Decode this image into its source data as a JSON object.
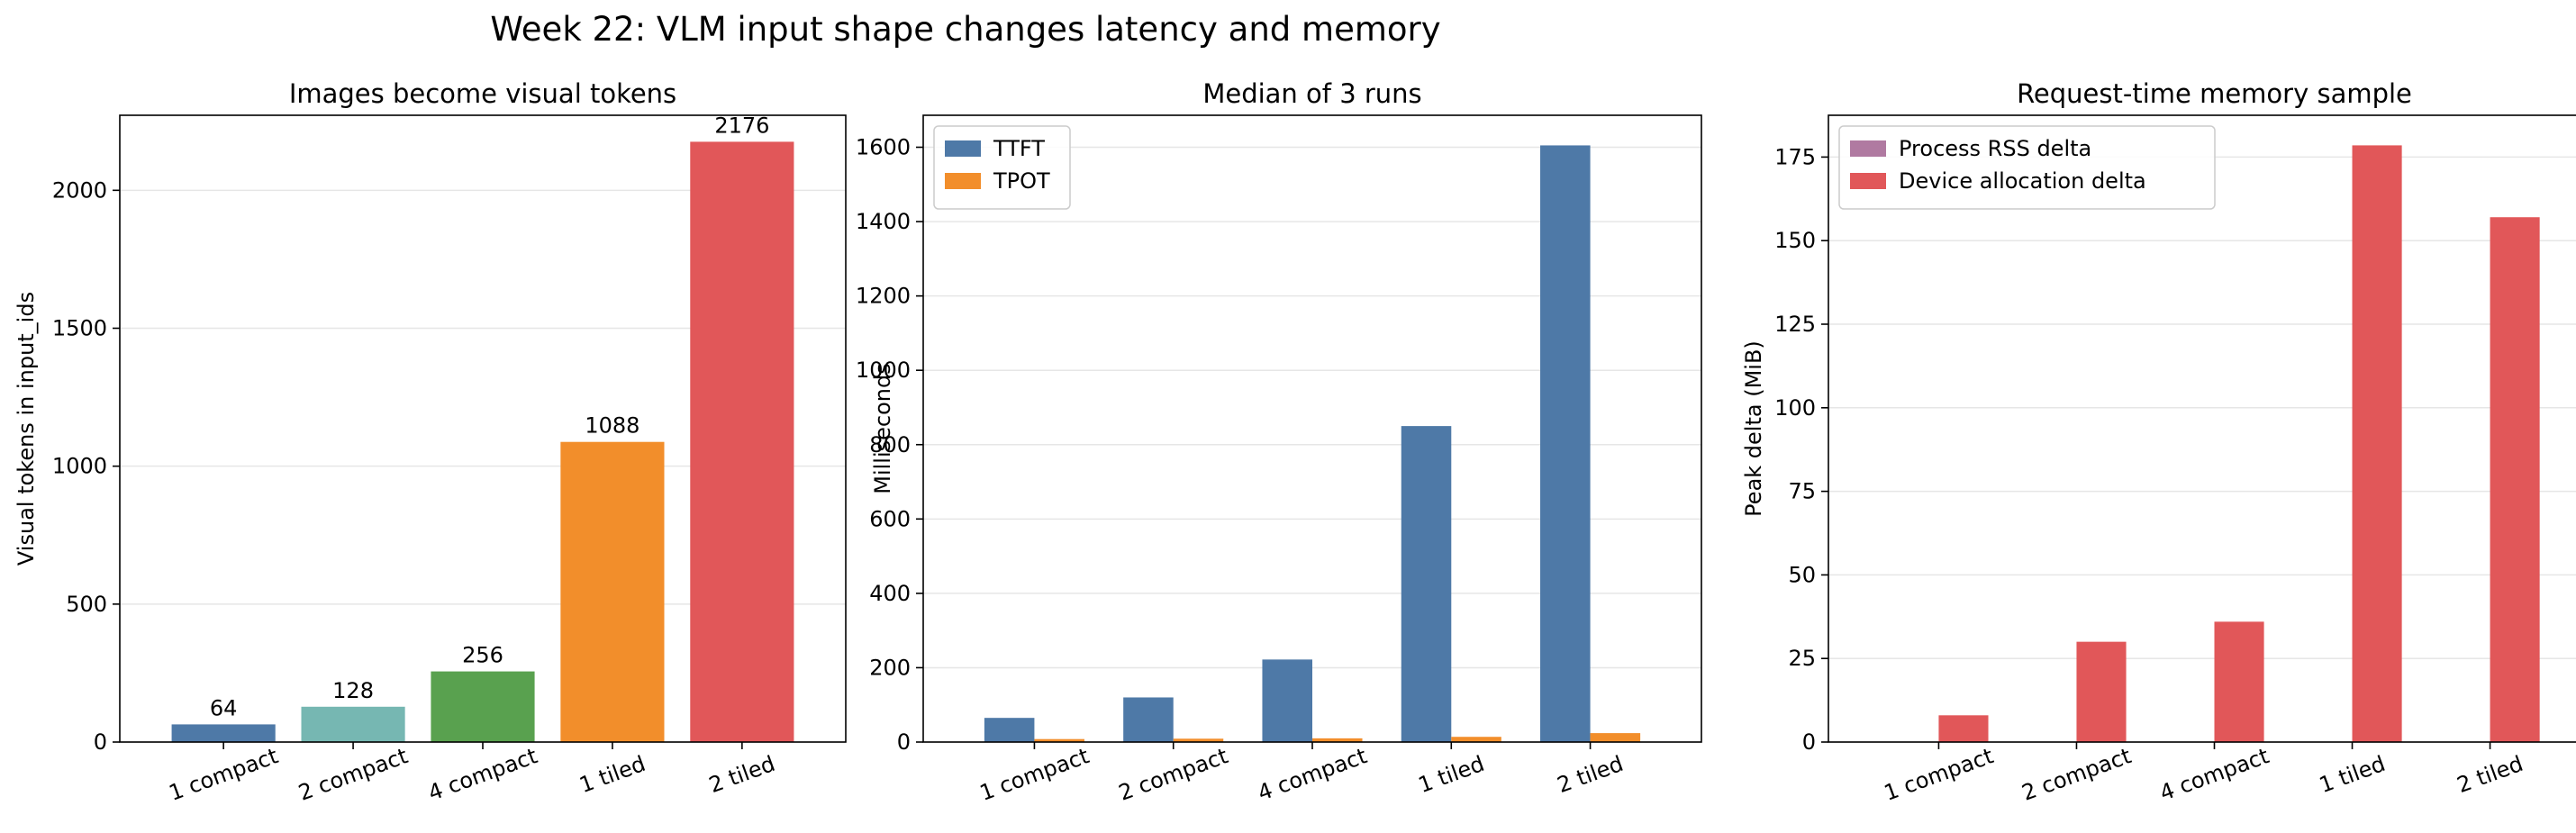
{
  "suptitle": "Week 22: VLM input shape changes latency and memory",
  "colors": {
    "steel_blue": "#4e79a7",
    "teal": "#76b7b2",
    "green": "#59a14f",
    "orange": "#f28e2b",
    "red": "#e15759",
    "mauve": "#b07aa1",
    "grid": "#e6e6e6"
  },
  "chart_data": [
    {
      "type": "bar",
      "title": "Images become visual tokens",
      "ylabel": "Visual tokens in input_ids",
      "categories": [
        "1 compact",
        "2 compact",
        "4 compact",
        "1 tiled",
        "2 tiled"
      ],
      "values": [
        64,
        128,
        256,
        1088,
        2176
      ],
      "data_labels": [
        "64",
        "128",
        "256",
        "1088",
        "2176"
      ],
      "bar_colors": [
        "#4e79a7",
        "#76b7b2",
        "#59a14f",
        "#f28e2b",
        "#e15759"
      ],
      "ylim": [
        0,
        2272
      ],
      "yticks": [
        0,
        500,
        1000,
        1500,
        2000
      ],
      "grid": "y"
    },
    {
      "type": "bar",
      "title": "Median of 3 runs",
      "ylabel": "Milliseconds",
      "categories": [
        "1 compact",
        "2 compact",
        "4 compact",
        "1 tiled",
        "2 tiled"
      ],
      "series": [
        {
          "name": "TTFT",
          "color": "#4e79a7",
          "values": [
            65,
            120,
            222,
            850,
            1605
          ]
        },
        {
          "name": "TPOT",
          "color": "#f28e2b",
          "values": [
            8,
            9,
            10,
            14,
            24
          ]
        }
      ],
      "ylim": [
        0,
        1686
      ],
      "yticks": [
        0,
        200,
        400,
        600,
        800,
        1000,
        1200,
        1400,
        1600
      ],
      "legend": "top-left",
      "grid": "y"
    },
    {
      "type": "bar",
      "title": "Request-time memory sample",
      "ylabel": "Peak delta (MiB)",
      "categories": [
        "1 compact",
        "2 compact",
        "4 compact",
        "1 tiled",
        "2 tiled"
      ],
      "series": [
        {
          "name": "Process RSS delta",
          "color": "#b07aa1",
          "values": [
            0,
            0,
            0,
            0,
            0
          ]
        },
        {
          "name": "Device allocation delta",
          "color": "#e15759",
          "values": [
            8,
            30,
            36,
            178.5,
            157
          ]
        }
      ],
      "ylim": [
        0,
        187.5
      ],
      "yticks": [
        0,
        25,
        50,
        75,
        100,
        125,
        150,
        175
      ],
      "legend": "top-left",
      "grid": "y"
    }
  ]
}
